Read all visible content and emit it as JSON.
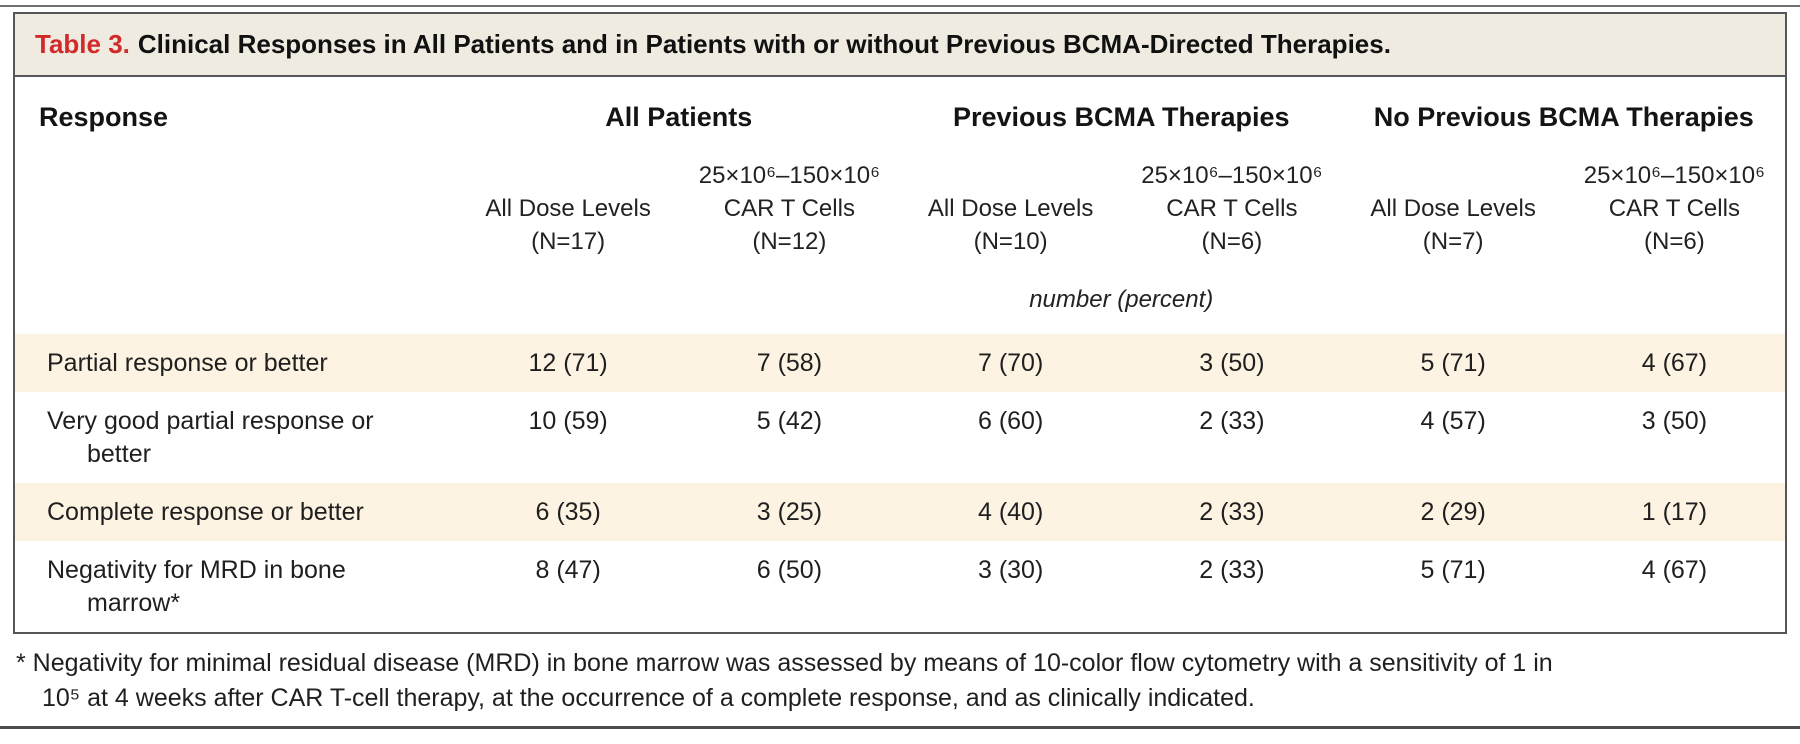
{
  "title": {
    "label": "Table 3.",
    "text": "Clinical Responses in All Patients and in Patients with or without Previous BCMA-Directed Therapies."
  },
  "columns": {
    "response_header": "Response",
    "groups": [
      {
        "label": "All Patients"
      },
      {
        "label": "Previous BCMA Therapies"
      },
      {
        "label": "No Previous BCMA Therapies"
      }
    ],
    "subheaders": [
      {
        "lines": [
          "All Dose Levels",
          "(N=17)"
        ]
      },
      {
        "lines": [
          "25×10⁶–150×10⁶",
          "CAR T Cells",
          "(N=12)"
        ]
      },
      {
        "lines": [
          "All Dose Levels",
          "(N=10)"
        ]
      },
      {
        "lines": [
          "25×10⁶–150×10⁶",
          "CAR T Cells",
          "(N=6)"
        ]
      },
      {
        "lines": [
          "All Dose Levels",
          "(N=7)"
        ]
      },
      {
        "lines": [
          "25×10⁶–150×10⁶",
          "CAR T Cells",
          "(N=6)"
        ]
      }
    ],
    "units_note": "number (percent)"
  },
  "rows": [
    {
      "label": "Partial response or better",
      "values": [
        "12 (71)",
        "7 (58)",
        "7 (70)",
        "3 (50)",
        "5 (71)",
        "4 (67)"
      ]
    },
    {
      "label": "Very good partial response or\nbetter",
      "values": [
        "10 (59)",
        "5 (42)",
        "6 (60)",
        "2 (33)",
        "4 (57)",
        "3 (50)"
      ]
    },
    {
      "label": "Complete response or better",
      "values": [
        "6 (35)",
        "3 (25)",
        "4 (40)",
        "2 (33)",
        "2 (29)",
        "1 (17)"
      ]
    },
    {
      "label": "Negativity for MRD in bone\nmarrow*",
      "values": [
        "8 (47)",
        "6 (50)",
        "3 (30)",
        "2 (33)",
        "5 (71)",
        "4 (67)"
      ]
    }
  ],
  "footnote": "* Negativity for minimal residual disease (MRD) in bone marrow was assessed by means of 10-color flow cytometry with a sensitivity of 1 in\n10⁵ at 4 weeks after CAR T-cell therapy, at the occurrence of a complete response, and as clinically indicated.",
  "colors": {
    "accent_red": "#d22a2a",
    "title_band_bg": "#efebe1",
    "stripe_bg": "#fdf3e2",
    "border_gray": "#55565a",
    "text": "#1f1f1f"
  }
}
